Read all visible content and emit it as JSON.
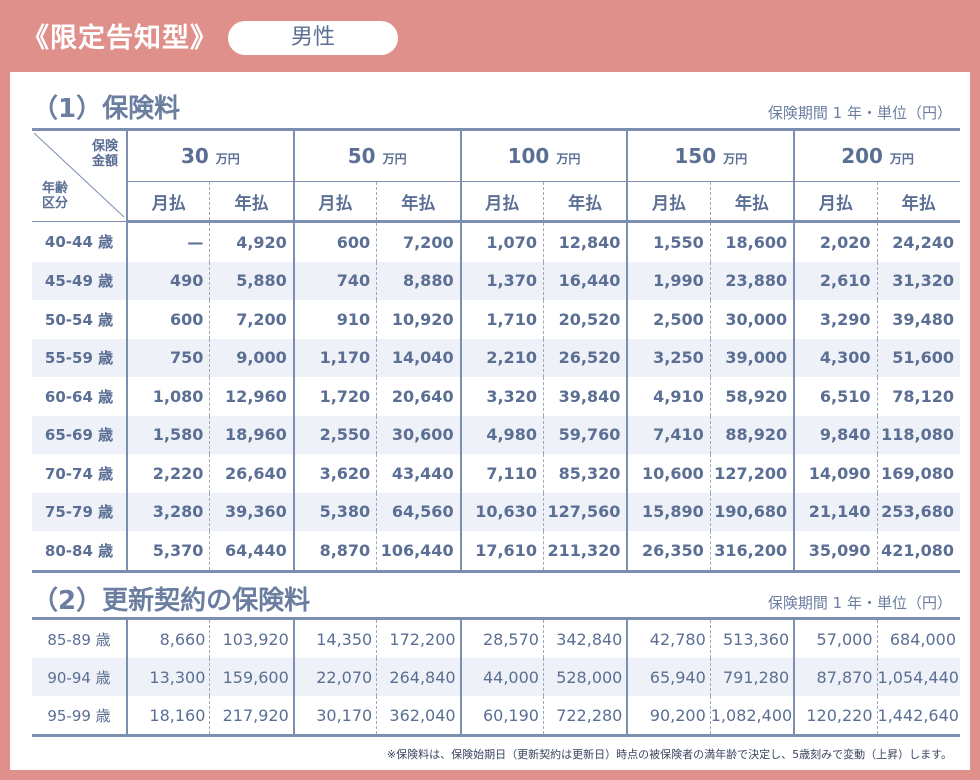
{
  "header": {
    "title": "《限定告知型》",
    "gender": "男性"
  },
  "section1": {
    "title": "（1）保険料",
    "unit_note": "保険期間 1 年・単位（円）",
    "corner_top": "保険\n金額",
    "corner_bottom": "年齢\n区分",
    "amounts": [
      {
        "num": "30",
        "unit": "万円"
      },
      {
        "num": "50",
        "unit": "万円"
      },
      {
        "num": "100",
        "unit": "万円"
      },
      {
        "num": "150",
        "unit": "万円"
      },
      {
        "num": "200",
        "unit": "万円"
      }
    ],
    "monthly_label": "月払",
    "annual_label": "年払",
    "rows": [
      {
        "age": "40-44 歳",
        "values": [
          "—",
          "4,920",
          "600",
          "7,200",
          "1,070",
          "12,840",
          "1,550",
          "18,600",
          "2,020",
          "24,240"
        ]
      },
      {
        "age": "45-49 歳",
        "values": [
          "490",
          "5,880",
          "740",
          "8,880",
          "1,370",
          "16,440",
          "1,990",
          "23,880",
          "2,610",
          "31,320"
        ]
      },
      {
        "age": "50-54 歳",
        "values": [
          "600",
          "7,200",
          "910",
          "10,920",
          "1,710",
          "20,520",
          "2,500",
          "30,000",
          "3,290",
          "39,480"
        ]
      },
      {
        "age": "55-59 歳",
        "values": [
          "750",
          "9,000",
          "1,170",
          "14,040",
          "2,210",
          "26,520",
          "3,250",
          "39,000",
          "4,300",
          "51,600"
        ]
      },
      {
        "age": "60-64 歳",
        "values": [
          "1,080",
          "12,960",
          "1,720",
          "20,640",
          "3,320",
          "39,840",
          "4,910",
          "58,920",
          "6,510",
          "78,120"
        ]
      },
      {
        "age": "65-69 歳",
        "values": [
          "1,580",
          "18,960",
          "2,550",
          "30,600",
          "4,980",
          "59,760",
          "7,410",
          "88,920",
          "9,840",
          "118,080"
        ]
      },
      {
        "age": "70-74 歳",
        "values": [
          "2,220",
          "26,640",
          "3,620",
          "43,440",
          "7,110",
          "85,320",
          "10,600",
          "127,200",
          "14,090",
          "169,080"
        ]
      },
      {
        "age": "75-79 歳",
        "values": [
          "3,280",
          "39,360",
          "5,380",
          "64,560",
          "10,630",
          "127,560",
          "15,890",
          "190,680",
          "21,140",
          "253,680"
        ]
      },
      {
        "age": "80-84 歳",
        "values": [
          "5,370",
          "64,440",
          "8,870",
          "106,440",
          "17,610",
          "211,320",
          "26,350",
          "316,200",
          "35,090",
          "421,080"
        ]
      }
    ]
  },
  "section2": {
    "title": "（2）更新契約の保険料",
    "unit_note": "保険期間 1 年・単位（円）",
    "rows": [
      {
        "age": "85-89 歳",
        "values": [
          "8,660",
          "103,920",
          "14,350",
          "172,200",
          "28,570",
          "342,840",
          "42,780",
          "513,360",
          "57,000",
          "684,000"
        ]
      },
      {
        "age": "90-94 歳",
        "values": [
          "13,300",
          "159,600",
          "22,070",
          "264,840",
          "44,000",
          "528,000",
          "65,940",
          "791,280",
          "87,870",
          "1,054,440"
        ]
      },
      {
        "age": "95-99 歳",
        "values": [
          "18,160",
          "217,920",
          "30,170",
          "362,040",
          "60,190",
          "722,280",
          "90,200",
          "1,082,400",
          "120,220",
          "1,442,640"
        ]
      }
    ]
  },
  "footnote": "※保険料は、保険始期日（更新契約は更新日）時点の被保険者の満年齢で決定し、5歳刻みで変動（上昇）します。"
}
